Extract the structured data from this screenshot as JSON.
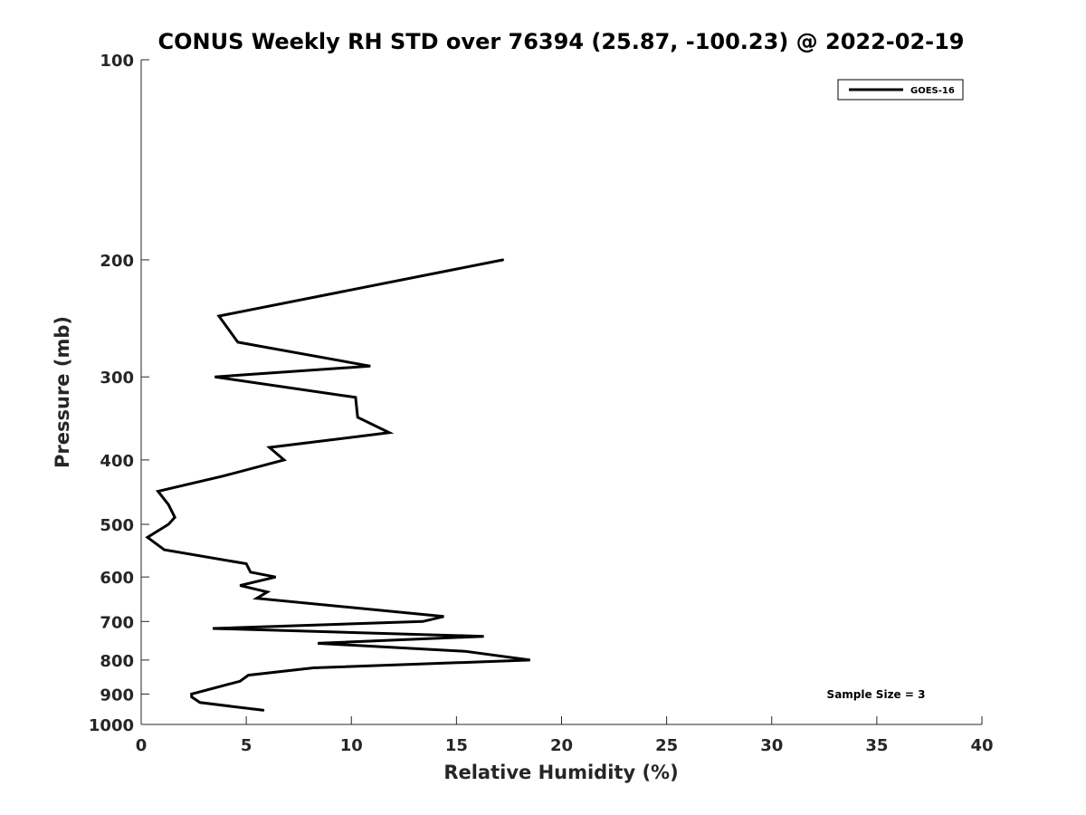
{
  "chart_data": {
    "type": "line",
    "title": "CONUS Weekly RH STD over 76394 (25.87, -100.23) @ 2022-02-19",
    "xlabel": "Relative Humidity (%)",
    "ylabel": "Pressure (mb)",
    "xlim": [
      0,
      40
    ],
    "ylim": [
      100,
      1000
    ],
    "y_scale": "log",
    "y_reversed": true,
    "grid": false,
    "legend_position": "top-right",
    "x_ticks": [
      0,
      5,
      10,
      15,
      20,
      25,
      30,
      35,
      40
    ],
    "x_tick_labels": [
      "0",
      "5",
      "10",
      "15",
      "20",
      "25",
      "30",
      "35",
      "40"
    ],
    "y_ticks": [
      100,
      200,
      300,
      400,
      500,
      600,
      700,
      800,
      900,
      1000
    ],
    "y_tick_labels": [
      "100",
      "200",
      "300",
      "400",
      "500",
      "600",
      "700",
      "800",
      "900",
      "1000"
    ],
    "annotation": "Sample Size = 3",
    "series": [
      {
        "name": "GOES-16",
        "color": "#000000",
        "points": [
          {
            "x": 17.2,
            "y": 200
          },
          {
            "x": 3.7,
            "y": 243
          },
          {
            "x": 4.6,
            "y": 266
          },
          {
            "x": 10.9,
            "y": 289
          },
          {
            "x": 3.5,
            "y": 300
          },
          {
            "x": 10.2,
            "y": 322
          },
          {
            "x": 10.3,
            "y": 345
          },
          {
            "x": 11.8,
            "y": 364
          },
          {
            "x": 6.1,
            "y": 383
          },
          {
            "x": 6.8,
            "y": 400
          },
          {
            "x": 3.9,
            "y": 423
          },
          {
            "x": 0.8,
            "y": 446
          },
          {
            "x": 1.3,
            "y": 467
          },
          {
            "x": 1.6,
            "y": 488
          },
          {
            "x": 1.3,
            "y": 500
          },
          {
            "x": 0.3,
            "y": 523
          },
          {
            "x": 1.1,
            "y": 546
          },
          {
            "x": 5.0,
            "y": 573
          },
          {
            "x": 5.2,
            "y": 590
          },
          {
            "x": 6.4,
            "y": 600
          },
          {
            "x": 4.7,
            "y": 618
          },
          {
            "x": 6.0,
            "y": 632
          },
          {
            "x": 5.5,
            "y": 646
          },
          {
            "x": 14.4,
            "y": 688
          },
          {
            "x": 13.4,
            "y": 700
          },
          {
            "x": 3.4,
            "y": 717
          },
          {
            "x": 16.3,
            "y": 737
          },
          {
            "x": 8.4,
            "y": 755
          },
          {
            "x": 15.4,
            "y": 776
          },
          {
            "x": 18.5,
            "y": 800
          },
          {
            "x": 8.2,
            "y": 822
          },
          {
            "x": 5.1,
            "y": 843
          },
          {
            "x": 4.7,
            "y": 861
          },
          {
            "x": 2.4,
            "y": 900
          },
          {
            "x": 2.4,
            "y": 909
          },
          {
            "x": 2.8,
            "y": 927
          },
          {
            "x": 5.8,
            "y": 952
          }
        ]
      }
    ]
  }
}
